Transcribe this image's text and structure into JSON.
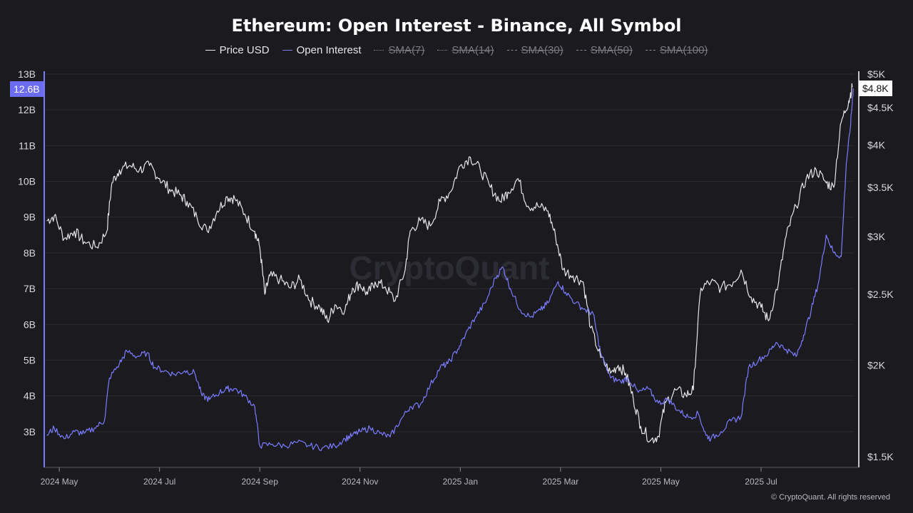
{
  "chart_data": {
    "type": "line",
    "title": "Ethereum: Open Interest - Binance, All Symbol",
    "legend": [
      {
        "label": "Price USD",
        "color": "#e6e6ea",
        "style": "solid",
        "active": true
      },
      {
        "label": "Open Interest",
        "color": "#7b7bff",
        "style": "solid",
        "active": true
      },
      {
        "label": "SMA(7)",
        "color": "#8a8a92",
        "style": "dotted",
        "active": false
      },
      {
        "label": "SMA(14)",
        "color": "#8a8a92",
        "style": "dotted",
        "active": false
      },
      {
        "label": "SMA(30)",
        "color": "#8a8a92",
        "style": "dashed",
        "active": false
      },
      {
        "label": "SMA(50)",
        "color": "#8a8a92",
        "style": "dashed",
        "active": false
      },
      {
        "label": "SMA(100)",
        "color": "#8a8a92",
        "style": "dashed",
        "active": false
      }
    ],
    "x_ticks": [
      "2024 May",
      "2024 Jul",
      "2024 Sep",
      "2024 Nov",
      "2025 Jan",
      "2025 Mar",
      "2025 May",
      "2025 Jul"
    ],
    "x_tick_months": [
      0,
      2,
      4,
      6,
      8,
      10,
      12,
      14
    ],
    "x_range_months": [
      -0.3,
      15.85
    ],
    "left_axis": {
      "unit": "B",
      "ticks": [
        "3B",
        "4B",
        "5B",
        "6B",
        "7B",
        "8B",
        "9B",
        "10B",
        "11B",
        "12B",
        "13B"
      ],
      "range": [
        2.0,
        13.0
      ]
    },
    "right_axis": {
      "scale": "log",
      "ticks": [
        "$1.5K",
        "$2K",
        "$2.5K",
        "$3K",
        "$3.5K",
        "$4K",
        "$4.5K",
        "$5K"
      ],
      "tick_values": [
        1500,
        2000,
        2500,
        3000,
        3500,
        4000,
        4500,
        5000
      ],
      "range": [
        1450,
        5000
      ]
    },
    "current_labels": {
      "open_interest": "12.6B",
      "price": "$4.8K"
    },
    "series": [
      {
        "name": "Price USD",
        "color": "#e6e6ea",
        "axis": "right",
        "points": [
          [
            -0.25,
            3150
          ],
          [
            -0.1,
            3200
          ],
          [
            0.1,
            2980
          ],
          [
            0.3,
            3050
          ],
          [
            0.5,
            2950
          ],
          [
            0.75,
            2900
          ],
          [
            0.95,
            3050
          ],
          [
            1.05,
            3550
          ],
          [
            1.2,
            3700
          ],
          [
            1.4,
            3750
          ],
          [
            1.6,
            3700
          ],
          [
            1.8,
            3750
          ],
          [
            2.0,
            3600
          ],
          [
            2.2,
            3480
          ],
          [
            2.4,
            3420
          ],
          [
            2.55,
            3350
          ],
          [
            2.75,
            3180
          ],
          [
            2.95,
            3050
          ],
          [
            3.15,
            3250
          ],
          [
            3.35,
            3400
          ],
          [
            3.5,
            3380
          ],
          [
            3.7,
            3220
          ],
          [
            3.9,
            3050
          ],
          [
            4.0,
            2900
          ],
          [
            4.1,
            2500
          ],
          [
            4.2,
            2650
          ],
          [
            4.4,
            2620
          ],
          [
            4.6,
            2550
          ],
          [
            4.8,
            2620
          ],
          [
            5.0,
            2450
          ],
          [
            5.2,
            2400
          ],
          [
            5.35,
            2300
          ],
          [
            5.5,
            2420
          ],
          [
            5.7,
            2380
          ],
          [
            5.85,
            2550
          ],
          [
            6.0,
            2580
          ],
          [
            6.15,
            2500
          ],
          [
            6.3,
            2600
          ],
          [
            6.5,
            2560
          ],
          [
            6.7,
            2450
          ],
          [
            6.9,
            2700
          ],
          [
            7.0,
            3050
          ],
          [
            7.2,
            3150
          ],
          [
            7.4,
            3100
          ],
          [
            7.6,
            3350
          ],
          [
            7.8,
            3450
          ],
          [
            8.0,
            3750
          ],
          [
            8.2,
            3850
          ],
          [
            8.4,
            3700
          ],
          [
            8.6,
            3500
          ],
          [
            8.8,
            3350
          ],
          [
            8.95,
            3450
          ],
          [
            9.15,
            3600
          ],
          [
            9.35,
            3300
          ],
          [
            9.55,
            3300
          ],
          [
            9.75,
            3250
          ],
          [
            9.9,
            3000
          ],
          [
            10.05,
            2700
          ],
          [
            10.25,
            2650
          ],
          [
            10.45,
            2600
          ],
          [
            10.6,
            2250
          ],
          [
            10.8,
            2050
          ],
          [
            11.0,
            1950
          ],
          [
            11.15,
            2000
          ],
          [
            11.3,
            1950
          ],
          [
            11.45,
            1800
          ],
          [
            11.6,
            1650
          ],
          [
            11.8,
            1580
          ],
          [
            11.95,
            1600
          ],
          [
            12.1,
            1780
          ],
          [
            12.3,
            1850
          ],
          [
            12.5,
            1820
          ],
          [
            12.65,
            1850
          ],
          [
            12.8,
            2550
          ],
          [
            13.0,
            2600
          ],
          [
            13.2,
            2550
          ],
          [
            13.45,
            2600
          ],
          [
            13.6,
            2700
          ],
          [
            13.8,
            2480
          ],
          [
            14.0,
            2400
          ],
          [
            14.15,
            2300
          ],
          [
            14.35,
            2600
          ],
          [
            14.5,
            3000
          ],
          [
            14.7,
            3300
          ],
          [
            14.9,
            3600
          ],
          [
            15.1,
            3700
          ],
          [
            15.3,
            3550
          ],
          [
            15.45,
            3500
          ],
          [
            15.6,
            4300
          ],
          [
            15.75,
            4600
          ],
          [
            15.82,
            4800
          ]
        ]
      },
      {
        "name": "Open Interest",
        "color": "#7b7bff",
        "axis": "left",
        "points": [
          [
            -0.25,
            2.9
          ],
          [
            -0.1,
            3.1
          ],
          [
            0.1,
            2.8
          ],
          [
            0.3,
            3.0
          ],
          [
            0.5,
            2.95
          ],
          [
            0.7,
            3.1
          ],
          [
            0.9,
            3.3
          ],
          [
            1.0,
            4.5
          ],
          [
            1.2,
            4.9
          ],
          [
            1.35,
            5.25
          ],
          [
            1.55,
            5.1
          ],
          [
            1.75,
            5.2
          ],
          [
            1.9,
            4.8
          ],
          [
            2.1,
            4.7
          ],
          [
            2.3,
            4.6
          ],
          [
            2.5,
            4.7
          ],
          [
            2.7,
            4.65
          ],
          [
            2.85,
            4.0
          ],
          [
            3.0,
            3.9
          ],
          [
            3.2,
            4.1
          ],
          [
            3.35,
            4.2
          ],
          [
            3.5,
            4.2
          ],
          [
            3.7,
            4.0
          ],
          [
            3.9,
            3.7
          ],
          [
            4.0,
            2.6
          ],
          [
            4.25,
            2.65
          ],
          [
            4.5,
            2.6
          ],
          [
            4.75,
            2.7
          ],
          [
            5.0,
            2.6
          ],
          [
            5.25,
            2.55
          ],
          [
            5.5,
            2.6
          ],
          [
            5.7,
            2.8
          ],
          [
            5.85,
            2.9
          ],
          [
            6.0,
            3.0
          ],
          [
            6.2,
            3.1
          ],
          [
            6.4,
            2.95
          ],
          [
            6.6,
            2.85
          ],
          [
            6.8,
            3.3
          ],
          [
            7.0,
            3.7
          ],
          [
            7.2,
            3.75
          ],
          [
            7.4,
            4.3
          ],
          [
            7.6,
            4.8
          ],
          [
            7.75,
            4.9
          ],
          [
            7.95,
            5.3
          ],
          [
            8.1,
            5.7
          ],
          [
            8.3,
            6.2
          ],
          [
            8.5,
            6.6
          ],
          [
            8.7,
            7.3
          ],
          [
            8.85,
            7.6
          ],
          [
            9.0,
            7.0
          ],
          [
            9.2,
            6.4
          ],
          [
            9.4,
            6.2
          ],
          [
            9.6,
            6.4
          ],
          [
            9.75,
            6.6
          ],
          [
            9.95,
            7.2
          ],
          [
            10.1,
            6.9
          ],
          [
            10.3,
            6.6
          ],
          [
            10.5,
            6.4
          ],
          [
            10.65,
            6.3
          ],
          [
            10.8,
            5.2
          ],
          [
            11.0,
            4.5
          ],
          [
            11.2,
            4.4
          ],
          [
            11.35,
            4.5
          ],
          [
            11.55,
            4.1
          ],
          [
            11.75,
            4.2
          ],
          [
            11.95,
            3.8
          ],
          [
            12.15,
            3.9
          ],
          [
            12.35,
            3.6
          ],
          [
            12.55,
            3.4
          ],
          [
            12.75,
            3.5
          ],
          [
            12.9,
            2.9
          ],
          [
            13.0,
            2.8
          ],
          [
            13.2,
            3.0
          ],
          [
            13.4,
            3.3
          ],
          [
            13.6,
            3.4
          ],
          [
            13.75,
            4.8
          ],
          [
            13.95,
            5.0
          ],
          [
            14.15,
            5.2
          ],
          [
            14.3,
            5.5
          ],
          [
            14.5,
            5.3
          ],
          [
            14.7,
            5.1
          ],
          [
            14.85,
            5.7
          ],
          [
            15.0,
            6.4
          ],
          [
            15.15,
            7.2
          ],
          [
            15.3,
            8.5
          ],
          [
            15.45,
            8.0
          ],
          [
            15.6,
            7.9
          ],
          [
            15.7,
            10.5
          ],
          [
            15.78,
            11.5
          ],
          [
            15.84,
            12.6
          ]
        ]
      }
    ]
  },
  "footer": "© CryptoQuant. All rights reserved",
  "watermark": "CryptoQuant"
}
